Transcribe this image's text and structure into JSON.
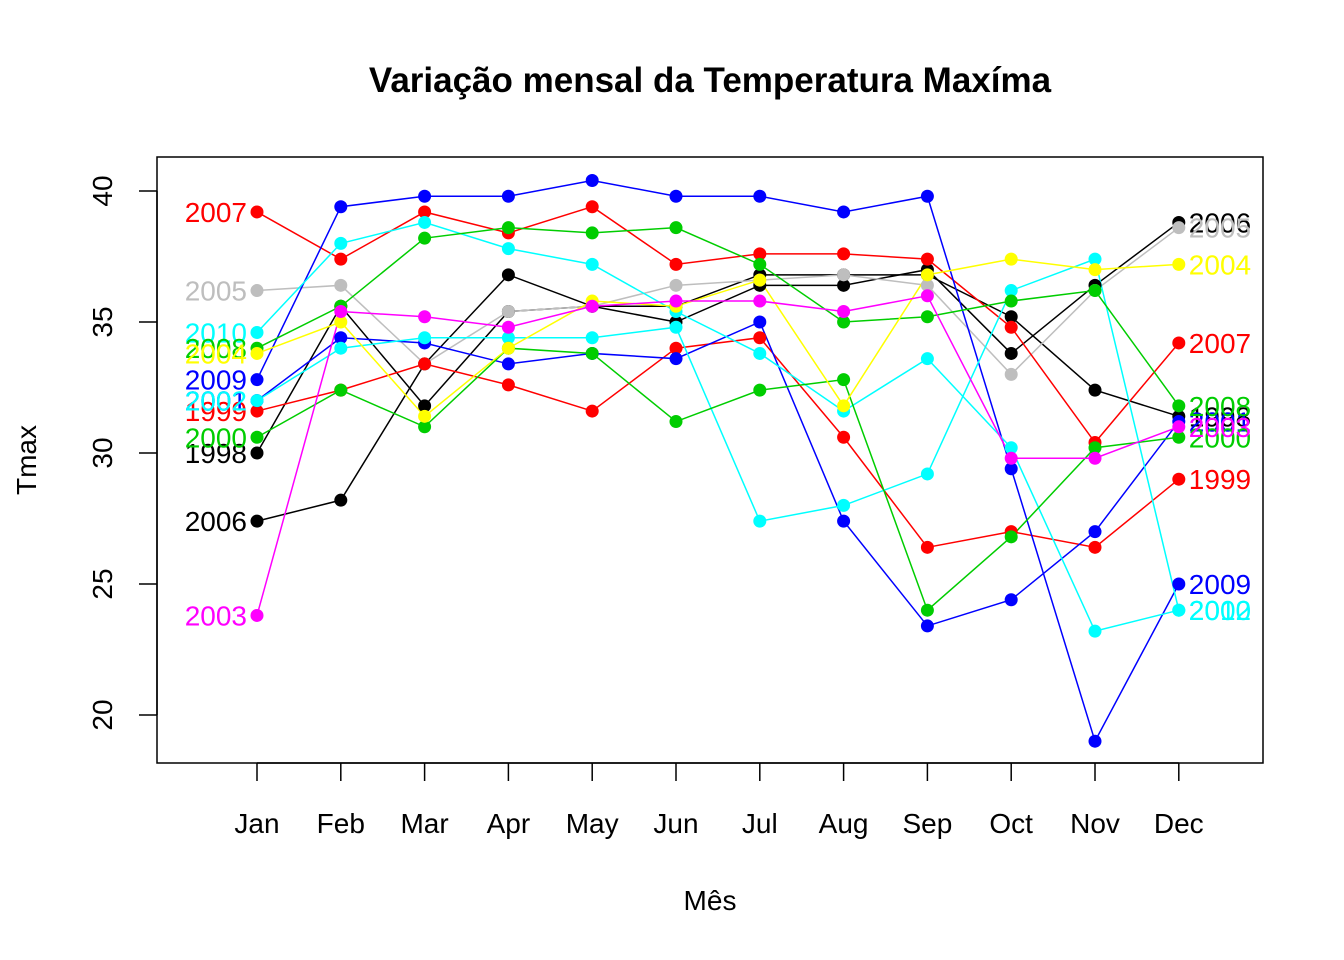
{
  "chart_data": {
    "type": "line",
    "title": "Variação mensal da Temperatura Maxíma",
    "xlabel": "Mês",
    "ylabel": "Tmax",
    "categories": [
      "Jan",
      "Feb",
      "Mar",
      "Apr",
      "May",
      "Jun",
      "Jul",
      "Aug",
      "Sep",
      "Oct",
      "Nov",
      "Dec"
    ],
    "yticks": [
      20,
      25,
      30,
      35,
      40
    ],
    "ylim": [
      18,
      41.3
    ],
    "grid": false,
    "legend": "none",
    "series": [
      {
        "name": "2006",
        "color": "#000000",
        "values": [
          27.4,
          28.2,
          33.4,
          36.8,
          35.6,
          35.0,
          36.4,
          36.4,
          37.0,
          33.8,
          36.4,
          38.8
        ]
      },
      {
        "name": "1998",
        "color": "#000000",
        "values": [
          30.0,
          35.6,
          31.8,
          35.4,
          35.6,
          35.6,
          36.8,
          36.8,
          36.8,
          35.2,
          32.4,
          31.4
        ]
      },
      {
        "name": "2005",
        "color": "#BEBEBE",
        "values": [
          36.2,
          36.4,
          33.4,
          35.4,
          35.6,
          36.4,
          36.6,
          36.8,
          36.4,
          33.0,
          36.2,
          38.6
        ]
      },
      {
        "name": "2007",
        "color": "#FF0000",
        "values": [
          39.2,
          37.4,
          39.2,
          38.4,
          39.4,
          37.2,
          37.6,
          37.6,
          37.4,
          34.8,
          30.4,
          34.2
        ]
      },
      {
        "name": "1999",
        "color": "#FF0000",
        "values": [
          31.6,
          32.4,
          33.4,
          32.6,
          31.6,
          34.0,
          34.4,
          30.6,
          26.4,
          27.0,
          26.4,
          29.0
        ]
      },
      {
        "name": "2009",
        "color": "#0000FF",
        "values": [
          32.8,
          39.4,
          39.8,
          39.8,
          40.4,
          39.8,
          39.8,
          39.2,
          39.8,
          29.4,
          19.0,
          25.0
        ]
      },
      {
        "name": "2001",
        "color": "#0000FF",
        "values": [
          32.0,
          34.4,
          34.2,
          33.4,
          33.8,
          33.6,
          35.0,
          27.4,
          23.4,
          24.4,
          27.0,
          31.2
        ]
      },
      {
        "name": "2010",
        "color": "#00FFFF",
        "values": [
          34.6,
          38.0,
          38.8,
          37.8,
          37.2,
          35.4,
          33.8,
          31.6,
          33.6,
          30.2,
          23.2,
          24.0
        ]
      },
      {
        "name": "2002",
        "color": "#00FFFF",
        "values": [
          32.0,
          34.0,
          34.4,
          34.4,
          34.4,
          34.8,
          27.4,
          28.0,
          29.2,
          36.2,
          37.4,
          24.0
        ]
      },
      {
        "name": "2008",
        "color": "#00CD00",
        "values": [
          34.0,
          35.6,
          38.2,
          38.6,
          38.4,
          38.6,
          37.2,
          35.0,
          35.2,
          35.8,
          36.2,
          31.8
        ]
      },
      {
        "name": "2000",
        "color": "#00CD00",
        "values": [
          30.6,
          32.4,
          31.0,
          34.0,
          33.8,
          31.2,
          32.4,
          32.8,
          24.0,
          26.8,
          30.2,
          30.6
        ]
      },
      {
        "name": "2004",
        "color": "#FFFF00",
        "values": [
          33.8,
          35.0,
          31.4,
          34.0,
          35.8,
          35.6,
          36.6,
          31.8,
          36.8,
          37.4,
          37.0,
          37.2
        ]
      },
      {
        "name": "2003",
        "color": "#FF00FF",
        "values": [
          23.8,
          35.4,
          35.2,
          34.8,
          35.6,
          35.8,
          35.8,
          35.4,
          36.0,
          29.8,
          29.8,
          31.0
        ]
      }
    ]
  }
}
